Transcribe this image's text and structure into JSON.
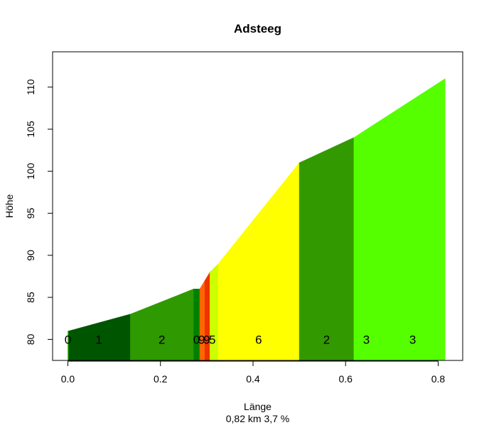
{
  "chart_data": {
    "type": "area",
    "title": "Adsteeg",
    "xlabel": "Länge",
    "ylabel": "Höhe",
    "subtitle": "0,82 km 3,7 %",
    "xlim": [
      -0.033,
      0.853
    ],
    "ylim": [
      77.5,
      114.2
    ],
    "xticks": [
      0.0,
      0.2,
      0.4,
      0.6,
      0.8
    ],
    "xtick_labels": [
      "0.0",
      "0.2",
      "0.4",
      "0.6",
      "0.8"
    ],
    "yticks": [
      80,
      85,
      90,
      95,
      100,
      105,
      110
    ],
    "ytick_labels": [
      "80",
      "85",
      "90",
      "95",
      "100",
      "105",
      "110"
    ],
    "grid": false,
    "segments": [
      {
        "x0": 0.0,
        "x1": 0.002,
        "y0": 81.0,
        "y1": 81.0,
        "color": "#2db300",
        "label": "0"
      },
      {
        "x0": 0.002,
        "x1": 0.135,
        "y0": 81.0,
        "y1": 83.0,
        "color": "#005500",
        "label": "1"
      },
      {
        "x0": 0.135,
        "x1": 0.272,
        "y0": 83.0,
        "y1": 86.0,
        "color": "#2e9900",
        "label": "2"
      },
      {
        "x0": 0.272,
        "x1": 0.285,
        "y0": 86.0,
        "y1": 86.0,
        "color": "#008000",
        "label": "0"
      },
      {
        "x0": 0.285,
        "x1": 0.296,
        "y0": 86.0,
        "y1": 87.0,
        "color": "#ff6600",
        "label": "9"
      },
      {
        "x0": 0.296,
        "x1": 0.307,
        "y0": 87.0,
        "y1": 88.0,
        "color": "#ee3300",
        "label": "9"
      },
      {
        "x0": 0.307,
        "x1": 0.325,
        "y0": 88.0,
        "y1": 89.0,
        "color": "#ccff00",
        "label": "5"
      },
      {
        "x0": 0.325,
        "x1": 0.5,
        "y0": 89.0,
        "y1": 101.0,
        "color": "#ffff00",
        "label": "6"
      },
      {
        "x0": 0.5,
        "x1": 0.618,
        "y0": 101.0,
        "y1": 104.0,
        "color": "#339900",
        "label": "2"
      },
      {
        "x0": 0.618,
        "x1": 0.815,
        "y0": 104.0,
        "y1": 111.0,
        "color": "#55ff00",
        "label": "3"
      }
    ],
    "segment_labels": [
      {
        "x": 0.0,
        "text": "0"
      },
      {
        "x": 0.067,
        "text": "1"
      },
      {
        "x": 0.203,
        "text": "2"
      },
      {
        "x": 0.278,
        "text": "0"
      },
      {
        "x": 0.289,
        "text": "9"
      },
      {
        "x": 0.3,
        "text": "9"
      },
      {
        "x": 0.312,
        "text": "5"
      },
      {
        "x": 0.412,
        "text": "6"
      },
      {
        "x": 0.559,
        "text": "2"
      },
      {
        "x": 0.645,
        "text": "3"
      },
      {
        "x": 0.745,
        "text": "3"
      }
    ],
    "label_y": 80.0
  }
}
